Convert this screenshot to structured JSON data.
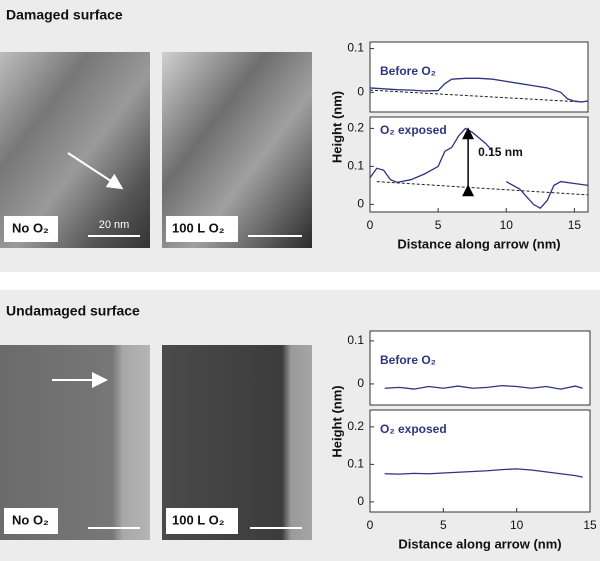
{
  "sections": [
    {
      "title": "Damaged surface",
      "images": [
        {
          "label": "No O₂",
          "scale_label": "20 nm"
        },
        {
          "label": "100 L O₂"
        }
      ]
    },
    {
      "title": "Undamaged surface",
      "images": [
        {
          "label": "No O₂"
        },
        {
          "label": "100 L O₂"
        }
      ]
    }
  ],
  "chart_data": [
    {
      "type": "line",
      "inset_label": "Before O₂",
      "x": [
        0,
        1,
        2,
        3,
        4,
        5,
        5.5,
        6,
        7,
        8,
        9,
        10,
        11,
        12,
        13,
        14,
        14.5,
        15,
        15.5,
        16
      ],
      "series": [
        {
          "color": "#2e3580",
          "values": [
            0.01,
            0.008,
            0.006,
            0.005,
            0.003,
            0.004,
            0.02,
            0.03,
            0.032,
            0.032,
            0.03,
            0.025,
            0.02,
            0.015,
            0.01,
            0.0,
            -0.015,
            -0.02,
            -0.022,
            -0.02
          ]
        }
      ],
      "reference_line": {
        "x": [
          0,
          15.5
        ],
        "values": [
          0.005,
          -0.022
        ]
      },
      "xlim": [
        0,
        16
      ],
      "ylim": [
        -0.045,
        0.115
      ],
      "yticks": [
        0,
        0.1
      ]
    },
    {
      "type": "line",
      "inset_label": "O₂ exposed",
      "x": [
        0,
        0.5,
        1,
        1.5,
        2,
        3,
        4,
        5,
        5.5,
        6,
        6.5,
        7,
        7.5,
        8,
        8.5,
        9,
        9.5,
        10,
        11,
        12,
        12.5,
        13,
        13.5,
        14,
        15,
        16
      ],
      "series": [
        {
          "color": "#2e3580",
          "values": [
            0.07,
            0.095,
            0.09,
            0.065,
            0.058,
            0.065,
            0.08,
            0.1,
            0.14,
            0.15,
            0.18,
            0.2,
            0.19,
            0.175,
            0.16,
            0.14,
            null,
            0.06,
            0.04,
            0.0,
            -0.01,
            0.01,
            0.05,
            0.06,
            0.055,
            0.05
          ]
        }
      ],
      "reference_line": {
        "x": [
          0.5,
          16
        ],
        "values": [
          0.06,
          0.025
        ]
      },
      "annotation": {
        "text": "0.15 nm",
        "x": 7.2,
        "from": 0.045,
        "to": 0.195
      },
      "xlim": [
        0,
        16
      ],
      "ylim": [
        -0.02,
        0.23
      ],
      "yticks": [
        0,
        0.1,
        0.2
      ],
      "xticks": [
        0,
        5,
        10,
        15
      ],
      "xlabel": "Distance along arrow (nm)",
      "ylabel": "Height (nm)"
    },
    {
      "type": "line",
      "inset_label": "Before O₂",
      "x": [
        1,
        2,
        3,
        4,
        5,
        6,
        7,
        8,
        9,
        10,
        11,
        12,
        13,
        14,
        14.5
      ],
      "series": [
        {
          "color": "#2e3580",
          "values": [
            -0.01,
            -0.008,
            -0.012,
            -0.006,
            -0.01,
            -0.005,
            -0.01,
            -0.008,
            -0.004,
            -0.006,
            -0.01,
            -0.006,
            -0.012,
            -0.005,
            -0.01
          ]
        }
      ],
      "xlim": [
        0,
        15
      ],
      "ylim": [
        -0.049,
        0.123
      ],
      "yticks": [
        0,
        0.1
      ]
    },
    {
      "type": "line",
      "inset_label": "O₂ exposed",
      "x": [
        1,
        2,
        3,
        4,
        5,
        6,
        7,
        8,
        9,
        10,
        11,
        12,
        13,
        14,
        14.5
      ],
      "series": [
        {
          "color": "#2e3580",
          "values": [
            0.075,
            0.074,
            0.076,
            0.075,
            0.077,
            0.079,
            0.081,
            0.083,
            0.086,
            0.088,
            0.085,
            0.08,
            0.075,
            0.07,
            0.066
          ]
        }
      ],
      "xlim": [
        0,
        15
      ],
      "ylim": [
        -0.027,
        0.245
      ],
      "yticks": [
        0,
        0.1,
        0.2
      ],
      "xticks": [
        0,
        5,
        10,
        15
      ],
      "xlabel": "Distance along arrow (nm)",
      "ylabel": "Height (nm)"
    }
  ]
}
